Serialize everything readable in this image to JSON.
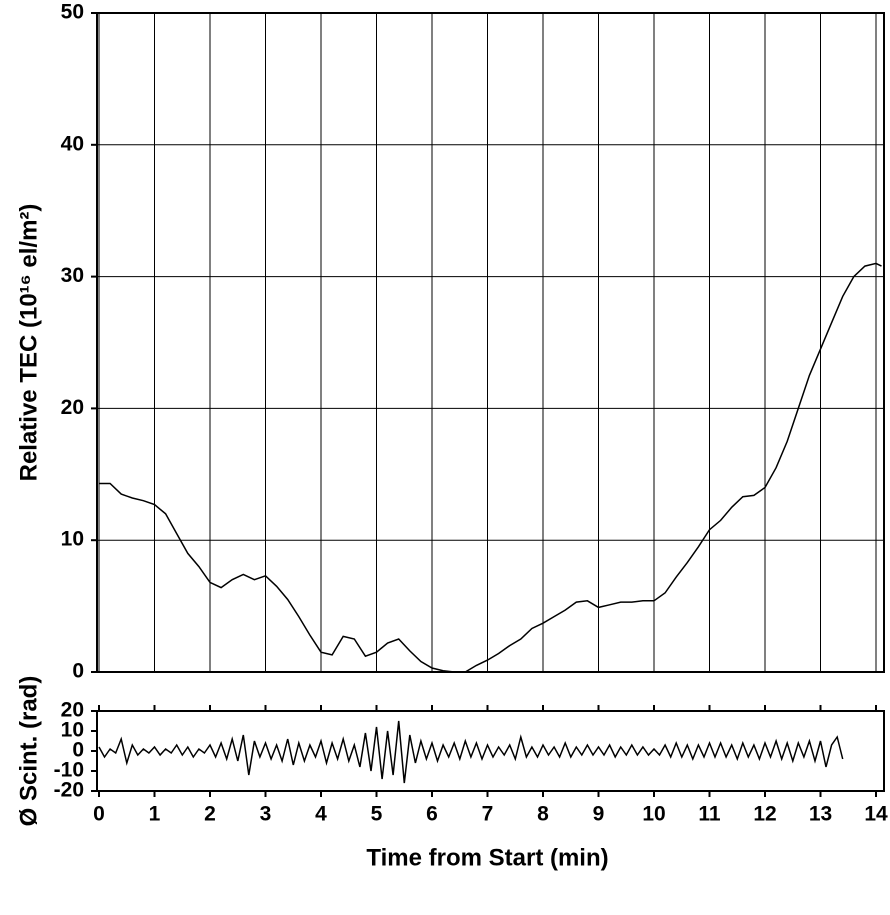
{
  "chart_data": [
    {
      "type": "line",
      "ylabel": "Relative TEC (10¹⁶ el/m²)",
      "color": "#000000",
      "grid": true,
      "xlim": [
        0,
        14.1
      ],
      "xticks": [
        0,
        1,
        2,
        3,
        4,
        5,
        6,
        7,
        8,
        9,
        10,
        11,
        12,
        13,
        14
      ],
      "ylim": [
        0,
        50
      ],
      "yticks": [
        0,
        10,
        20,
        30,
        40,
        50
      ],
      "x": [
        0,
        0.2,
        0.4,
        0.6,
        0.8,
        1.0,
        1.2,
        1.4,
        1.6,
        1.8,
        2.0,
        2.2,
        2.4,
        2.6,
        2.8,
        3.0,
        3.2,
        3.4,
        3.6,
        3.8,
        4.0,
        4.2,
        4.4,
        4.6,
        4.8,
        5.0,
        5.2,
        5.4,
        5.6,
        5.8,
        6.0,
        6.2,
        6.4,
        6.6,
        6.8,
        7.0,
        7.2,
        7.4,
        7.6,
        7.8,
        8.0,
        8.2,
        8.4,
        8.6,
        8.8,
        9.0,
        9.2,
        9.4,
        9.6,
        9.8,
        10.0,
        10.2,
        10.4,
        10.6,
        10.8,
        11.0,
        11.2,
        11.4,
        11.6,
        11.8,
        12.0,
        12.2,
        12.4,
        12.6,
        12.8,
        13.0,
        13.2,
        13.4,
        13.6,
        13.8,
        14.0,
        14.1
      ],
      "values": [
        14.3,
        14.3,
        13.5,
        13.2,
        13,
        12.7,
        12,
        10.5,
        9,
        8,
        6.8,
        6.4,
        7,
        7.4,
        7,
        7.3,
        6.5,
        5.5,
        4.2,
        2.8,
        1.5,
        1.3,
        2.7,
        2.5,
        1.2,
        1.5,
        2.2,
        2.5,
        1.6,
        0.8,
        0.3,
        0.1,
        0,
        0,
        0.5,
        0.9,
        1.4,
        2,
        2.5,
        3.3,
        3.7,
        4.2,
        4.7,
        5.3,
        5.4,
        4.9,
        5.1,
        5.3,
        5.3,
        5.4,
        5.4,
        6,
        7.2,
        8.3,
        9.5,
        10.8,
        11.5,
        12.5,
        13.3,
        13.4,
        14,
        15.5,
        17.5,
        20,
        22.5,
        24.5,
        26.5,
        28.5,
        30,
        30.8,
        31,
        30.8
      ]
    },
    {
      "type": "line",
      "ylabel": "Ø Scint. (rad)",
      "xlabel": "Time from Start (min)",
      "color": "#000000",
      "xlim": [
        0,
        14.1
      ],
      "xticks": [
        0,
        1,
        2,
        3,
        4,
        5,
        6,
        7,
        8,
        9,
        10,
        11,
        12,
        13,
        14
      ],
      "ylim": [
        -20,
        20
      ],
      "yticks": [
        -20,
        -10,
        0,
        10,
        20
      ],
      "x": [
        0,
        0.1,
        0.2,
        0.3,
        0.4,
        0.5,
        0.6,
        0.7,
        0.8,
        0.9,
        1.0,
        1.1,
        1.2,
        1.3,
        1.4,
        1.5,
        1.6,
        1.7,
        1.8,
        1.9,
        2.0,
        2.1,
        2.2,
        2.3,
        2.4,
        2.5,
        2.6,
        2.7,
        2.8,
        2.9,
        3.0,
        3.1,
        3.2,
        3.3,
        3.4,
        3.5,
        3.6,
        3.7,
        3.8,
        3.9,
        4.0,
        4.1,
        4.2,
        4.3,
        4.4,
        4.5,
        4.6,
        4.7,
        4.8,
        4.9,
        5.0,
        5.1,
        5.2,
        5.3,
        5.4,
        5.5,
        5.6,
        5.7,
        5.8,
        5.9,
        6.0,
        6.1,
        6.2,
        6.3,
        6.4,
        6.5,
        6.6,
        6.7,
        6.8,
        6.9,
        7.0,
        7.1,
        7.2,
        7.3,
        7.4,
        7.5,
        7.6,
        7.7,
        7.8,
        7.9,
        8.0,
        8.1,
        8.2,
        8.3,
        8.4,
        8.5,
        8.6,
        8.7,
        8.8,
        8.9,
        9.0,
        9.1,
        9.2,
        9.3,
        9.4,
        9.5,
        9.6,
        9.7,
        9.8,
        9.9,
        10.0,
        10.1,
        10.2,
        10.3,
        10.4,
        10.5,
        10.6,
        10.7,
        10.8,
        10.9,
        11.0,
        11.1,
        11.2,
        11.3,
        11.4,
        11.5,
        11.6,
        11.7,
        11.8,
        11.9,
        12.0,
        12.1,
        12.2,
        12.3,
        12.4,
        12.5,
        12.6,
        12.7,
        12.8,
        12.9,
        13.0,
        13.1,
        13.2,
        13.3,
        13.4
      ],
      "values": [
        2,
        -3,
        1,
        -1,
        6,
        -6,
        3,
        -2,
        1,
        -1,
        2,
        -2,
        1,
        -1,
        3,
        -2,
        2,
        -3,
        1,
        -1,
        3,
        -3,
        4,
        -4,
        6,
        -5,
        8,
        -12,
        5,
        -3,
        4,
        -4,
        3,
        -5,
        6,
        -7,
        4,
        -5,
        3,
        -3,
        5,
        -6,
        4,
        -4,
        6,
        -5,
        3,
        -8,
        9,
        -10,
        12,
        -14,
        10,
        -12,
        15,
        -16,
        8,
        -6,
        5,
        -4,
        4,
        -5,
        3,
        -3,
        4,
        -4,
        5,
        -3,
        4,
        -4,
        3,
        -3,
        2,
        -2,
        3,
        -4,
        7,
        -3,
        2,
        -3,
        3,
        -2,
        2,
        -3,
        4,
        -3,
        2,
        -2,
        3,
        -2,
        2,
        -2,
        3,
        -3,
        2,
        -2,
        3,
        -2,
        2,
        -2,
        1,
        -2,
        3,
        -3,
        4,
        -3,
        3,
        -4,
        3,
        -3,
        4,
        -3,
        4,
        -3,
        3,
        -4,
        4,
        -3,
        3,
        -4,
        4,
        -3,
        5,
        -4,
        4,
        -5,
        4,
        -3,
        5,
        -5,
        5,
        -8,
        3,
        7,
        -4
      ]
    }
  ]
}
